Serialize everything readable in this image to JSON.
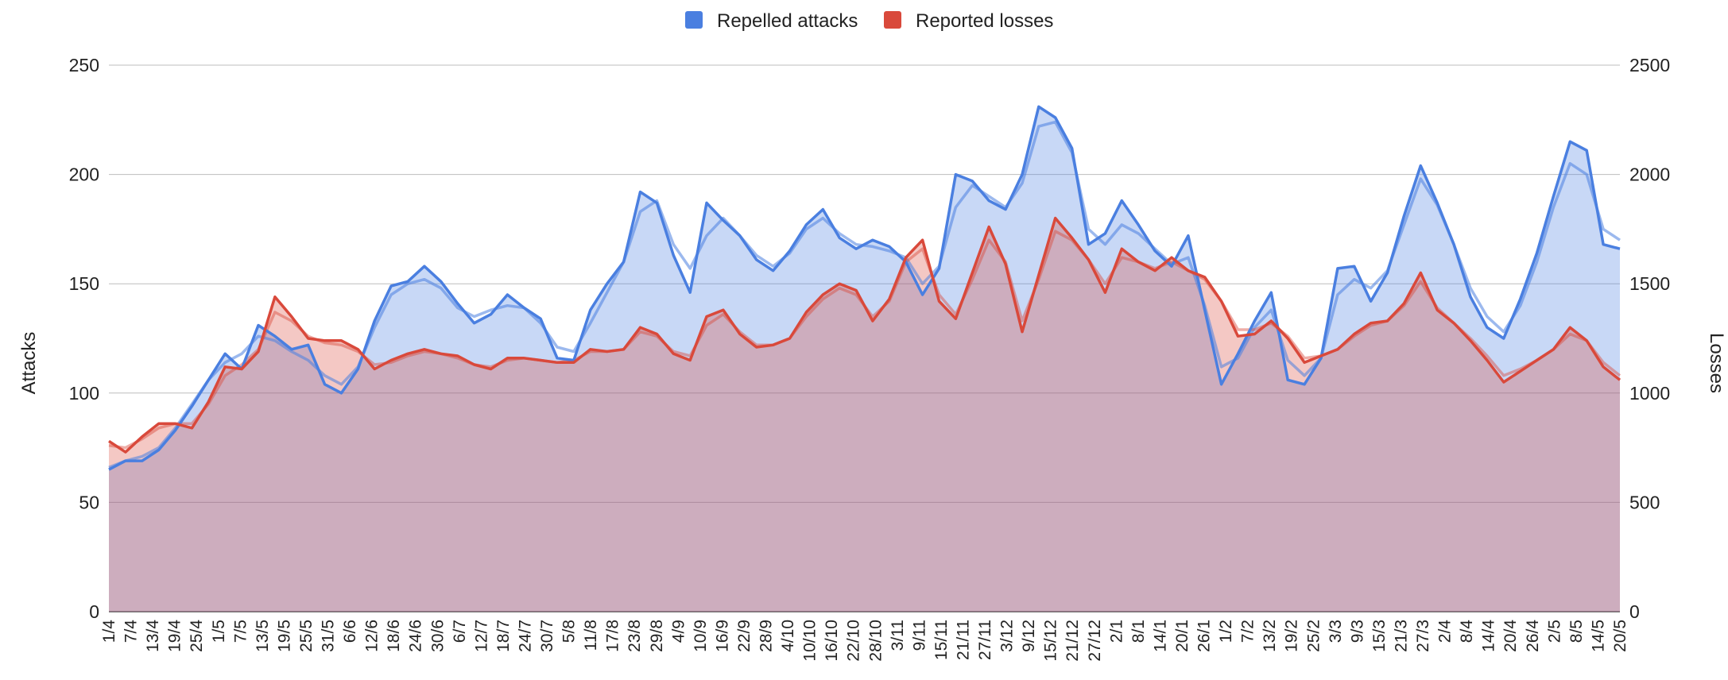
{
  "chart_data": {
    "type": "area",
    "title": "",
    "legend_position": "top-center",
    "grid": true,
    "colors": {
      "attacks": "#4a7fe0",
      "losses": "#d9493b",
      "attacks_fill": "#c6d7f4",
      "losses_fill": "#f3c4bd",
      "overlap_fill": "#cbaabf",
      "grid": "#bdbdbd"
    },
    "y_left": {
      "label": "Attacks",
      "range": [
        0,
        250
      ],
      "ticks": [
        0,
        50,
        100,
        150,
        200,
        250
      ]
    },
    "y_right": {
      "label": "Losses",
      "range": [
        0,
        2500
      ],
      "ticks": [
        0,
        500,
        1000,
        1500,
        2000,
        2500
      ]
    },
    "x_tick_labels": [
      "1/4",
      "7/4",
      "13/4",
      "19/4",
      "25/4",
      "1/5",
      "7/5",
      "13/5",
      "19/5",
      "25/5",
      "31/5",
      "6/6",
      "12/6",
      "18/6",
      "24/6",
      "30/6",
      "6/7",
      "12/7",
      "18/7",
      "24/7",
      "30/7",
      "5/8",
      "11/8",
      "17/8",
      "23/8",
      "29/8",
      "4/9",
      "10/9",
      "16/9",
      "22/9",
      "28/9",
      "4/10",
      "10/10",
      "16/10",
      "22/10",
      "28/10",
      "3/11",
      "9/11",
      "15/11",
      "21/11",
      "27/11",
      "3/12",
      "9/12",
      "15/12",
      "21/12",
      "27/12",
      "2/1",
      "8/1",
      "14/1",
      "20/1",
      "26/1",
      "1/2",
      "7/2",
      "13/2",
      "19/2",
      "25/2",
      "3/3",
      "9/3",
      "15/3",
      "21/3",
      "27/3",
      "2/4",
      "8/4",
      "14/4",
      "20/4",
      "26/4",
      "2/5",
      "8/5",
      "14/5",
      "20/5"
    ],
    "series": [
      {
        "name": "Repelled attacks",
        "axis": "left",
        "values": [
          65,
          69,
          69,
          74,
          83,
          94,
          106,
          118,
          111,
          131,
          126,
          120,
          122,
          104,
          100,
          111,
          133,
          149,
          151,
          158,
          151,
          141,
          132,
          136,
          145,
          139,
          134,
          116,
          115,
          138,
          150,
          160,
          192,
          187,
          163,
          146,
          187,
          179,
          172,
          161,
          156,
          165,
          177,
          184,
          171,
          166,
          170,
          167,
          160,
          145,
          157,
          200,
          197,
          188,
          184,
          200,
          231,
          226,
          212,
          168,
          173,
          188,
          177,
          165,
          158,
          172,
          138,
          104,
          118,
          133,
          146,
          106,
          104,
          116,
          157,
          158,
          142,
          155,
          181,
          204,
          187,
          168,
          144,
          130,
          125,
          143,
          164,
          190,
          215,
          211,
          168,
          166
        ]
      },
      {
        "name": "Reported losses",
        "axis": "right",
        "values": [
          780,
          730,
          800,
          860,
          860,
          840,
          960,
          1120,
          1110,
          1190,
          1440,
          1350,
          1250,
          1240,
          1240,
          1200,
          1110,
          1150,
          1180,
          1200,
          1180,
          1170,
          1130,
          1110,
          1160,
          1160,
          1150,
          1140,
          1140,
          1200,
          1190,
          1200,
          1300,
          1270,
          1180,
          1150,
          1350,
          1380,
          1270,
          1210,
          1220,
          1250,
          1370,
          1450,
          1500,
          1470,
          1330,
          1430,
          1620,
          1700,
          1420,
          1340,
          1550,
          1760,
          1590,
          1280,
          1540,
          1800,
          1710,
          1610,
          1460,
          1660,
          1600,
          1560,
          1620,
          1560,
          1530,
          1420,
          1260,
          1270,
          1330,
          1250,
          1140,
          1170,
          1200,
          1270,
          1320,
          1330,
          1410,
          1550,
          1380,
          1320,
          1240,
          1150,
          1050,
          1100,
          1150,
          1200,
          1300,
          1240,
          1120,
          1060
        ]
      }
    ],
    "trendline_series": [
      {
        "name": "Repelled attacks (trend)",
        "values": [
          66,
          69,
          71,
          75,
          84,
          95,
          106,
          114,
          118,
          126,
          124,
          119,
          115,
          108,
          104,
          112,
          130,
          145,
          150,
          152,
          148,
          139,
          135,
          138,
          140,
          139,
          132,
          121,
          119,
          132,
          146,
          160,
          183,
          188,
          168,
          157,
          172,
          180,
          172,
          163,
          158,
          164,
          175,
          180,
          173,
          168,
          167,
          165,
          162,
          150,
          158,
          185,
          195,
          190,
          185,
          196,
          222,
          224,
          210,
          175,
          168,
          177,
          173,
          166,
          159,
          162,
          140,
          112,
          116,
          130,
          138,
          115,
          108,
          116,
          145,
          152,
          148,
          156,
          177,
          198,
          186,
          168,
          148,
          135,
          128,
          140,
          160,
          185,
          205,
          200,
          175,
          170
        ]
      },
      {
        "name": "Reported losses (trend)",
        "values": [
          760,
          750,
          790,
          840,
          860,
          860,
          950,
          1080,
          1130,
          1200,
          1370,
          1330,
          1260,
          1230,
          1220,
          1190,
          1130,
          1140,
          1170,
          1190,
          1180,
          1160,
          1130,
          1120,
          1150,
          1160,
          1150,
          1140,
          1150,
          1190,
          1190,
          1200,
          1280,
          1260,
          1190,
          1170,
          1310,
          1360,
          1280,
          1220,
          1220,
          1250,
          1350,
          1430,
          1480,
          1450,
          1350,
          1420,
          1600,
          1660,
          1450,
          1360,
          1520,
          1700,
          1600,
          1330,
          1520,
          1740,
          1700,
          1610,
          1500,
          1620,
          1600,
          1570,
          1600,
          1560,
          1520,
          1420,
          1290,
          1290,
          1320,
          1260,
          1160,
          1170,
          1200,
          1260,
          1310,
          1330,
          1400,
          1510,
          1390,
          1320,
          1250,
          1170,
          1080,
          1110,
          1150,
          1200,
          1270,
          1240,
          1140,
          1080
        ]
      }
    ]
  }
}
